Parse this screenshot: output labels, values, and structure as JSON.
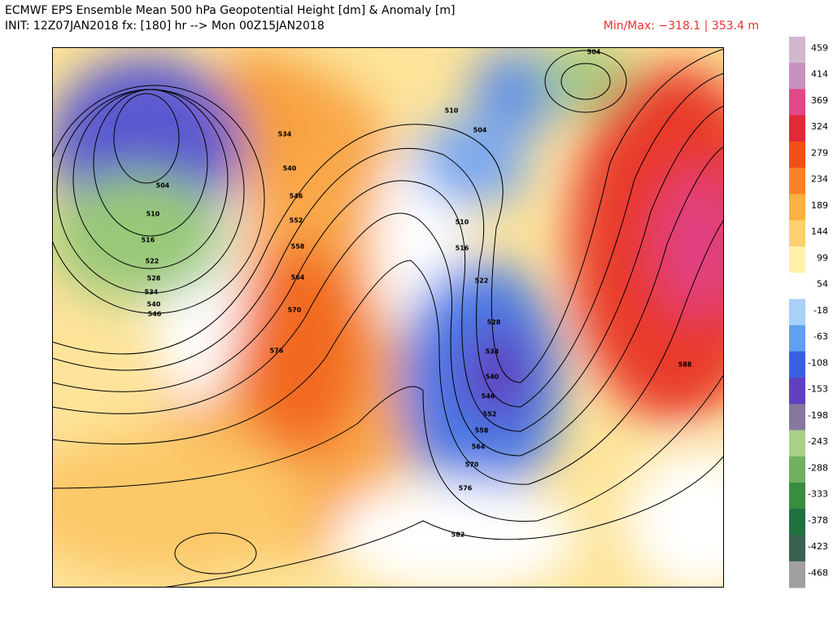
{
  "header": {
    "title": "ECMWF EPS Ensemble Mean 500 hPa Geopotential Height [dm] & Anomaly [m]",
    "init": "INIT: 12Z07JAN2018 fx: [180] hr --> Mon 00Z15JAN2018",
    "minmax": "Min/Max: −318.1 | 353.4 m"
  },
  "colorbar": {
    "labels": [
      "459",
      "414",
      "369",
      "324",
      "279",
      "234",
      "189",
      "144",
      "99",
      "54",
      "-18",
      "-63",
      "-108",
      "-153",
      "-198",
      "-243",
      "-288",
      "-333",
      "-378",
      "-423",
      "-468"
    ]
  },
  "contour_labels": [
    "504",
    "510",
    "516",
    "522",
    "528",
    "534",
    "540",
    "546",
    "534",
    "540",
    "546",
    "552",
    "558",
    "564",
    "570",
    "576",
    "510",
    "504",
    "510",
    "516",
    "522",
    "528",
    "534",
    "540",
    "546",
    "552",
    "558",
    "564",
    "570",
    "576",
    "582",
    "588",
    "504"
  ]
}
